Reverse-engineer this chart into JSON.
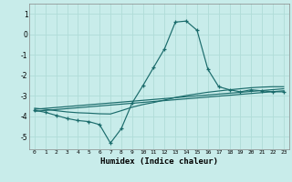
{
  "xlabel": "Humidex (Indice chaleur)",
  "bg_color": "#c8ecea",
  "grid_color": "#b0dcd8",
  "line_color": "#1a6b6b",
  "xlim": [
    -0.5,
    23.5
  ],
  "ylim": [
    -5.6,
    1.5
  ],
  "yticks": [
    1,
    0,
    -1,
    -2,
    -3,
    -4,
    -5
  ],
  "xticks": [
    0,
    1,
    2,
    3,
    4,
    5,
    6,
    7,
    8,
    9,
    10,
    11,
    12,
    13,
    14,
    15,
    16,
    17,
    18,
    19,
    20,
    21,
    22,
    23
  ],
  "line1_x": [
    0,
    1,
    2,
    3,
    4,
    5,
    6,
    7,
    8,
    9,
    10,
    11,
    12,
    13,
    14,
    15,
    16,
    17,
    18,
    19,
    20,
    21,
    22,
    23
  ],
  "line1_y": [
    -3.7,
    -3.8,
    -3.95,
    -4.1,
    -4.2,
    -4.25,
    -4.4,
    -5.3,
    -4.6,
    -3.35,
    -2.5,
    -1.6,
    -0.7,
    0.6,
    0.65,
    0.2,
    -1.7,
    -2.55,
    -2.7,
    -2.8,
    -2.7,
    -2.75,
    -2.8,
    -2.8
  ],
  "line2_x": [
    0,
    1,
    2,
    3,
    4,
    5,
    6,
    7,
    8,
    9,
    10,
    11,
    12,
    13,
    14,
    15,
    16,
    17,
    18,
    19,
    20,
    21,
    22,
    23
  ],
  "line2_y": [
    -3.6,
    -3.65,
    -3.72,
    -3.78,
    -3.82,
    -3.84,
    -3.87,
    -3.88,
    -3.72,
    -3.55,
    -3.42,
    -3.32,
    -3.2,
    -3.08,
    -2.98,
    -2.9,
    -2.82,
    -2.76,
    -2.7,
    -2.65,
    -2.6,
    -2.57,
    -2.55,
    -2.55
  ],
  "line3_x": [
    0,
    23
  ],
  "line3_y": [
    -3.65,
    -2.65
  ],
  "line4_x": [
    0,
    23
  ],
  "line4_y": [
    -3.75,
    -2.75
  ]
}
